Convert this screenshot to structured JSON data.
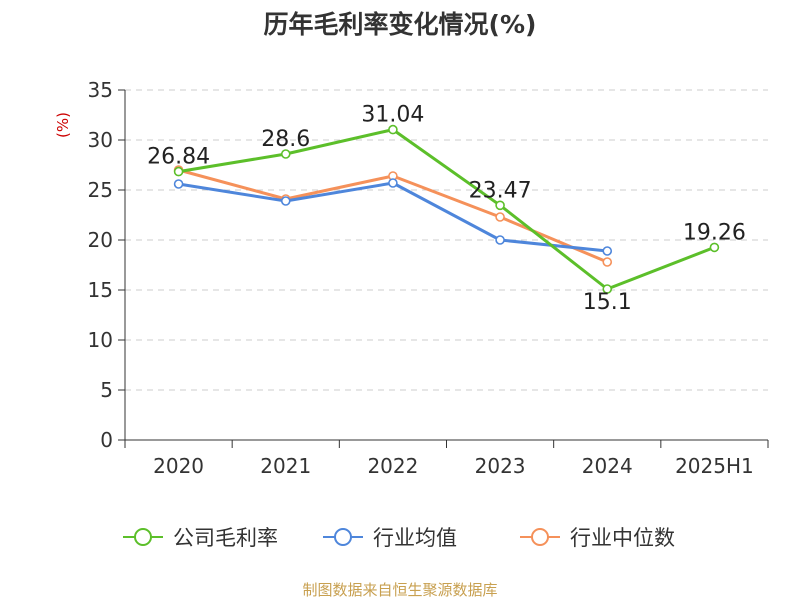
{
  "chart_data": {
    "type": "line",
    "title": "历年毛利率变化情况(%)",
    "ylabel": "(%)",
    "categories": [
      "2020",
      "2021",
      "2022",
      "2023",
      "2024",
      "2025H1"
    ],
    "ylim": [
      0,
      35
    ],
    "yticks": [
      0,
      5,
      10,
      15,
      20,
      25,
      30,
      35
    ],
    "grid": true,
    "legend_position": "bottom",
    "series": [
      {
        "name": "公司毛利率",
        "color": "#5cbf2a",
        "values": [
          26.84,
          28.6,
          31.04,
          23.47,
          15.1,
          19.26
        ],
        "labels": [
          "26.84",
          "28.6",
          "31.04",
          "23.47",
          "15.1",
          "19.26"
        ]
      },
      {
        "name": "行业均值",
        "color": "#4e86db",
        "values": [
          25.6,
          23.9,
          25.7,
          20.0,
          18.9,
          null
        ]
      },
      {
        "name": "行业中位数",
        "color": "#f5915a",
        "values": [
          27.0,
          24.1,
          26.4,
          22.3,
          17.8,
          null
        ]
      }
    ],
    "source": "制图数据来自恒生聚源数据库"
  },
  "colors": {
    "title": "#333333",
    "axis": "#333333",
    "grid": "#cccccc",
    "ylabel": "#cc0000",
    "source": "#c8a050"
  }
}
